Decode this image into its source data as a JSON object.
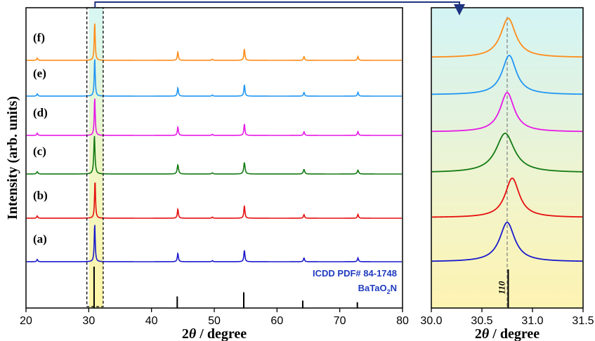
{
  "ylabel": "Intensity (arb. units)",
  "reference": {
    "line1": "ICDD PDF# 84-1748",
    "line2_main": "BaTaO",
    "line2_sub": "2",
    "line2_end": "N",
    "peak_label": "110"
  },
  "colors": {
    "a": "#1a1acc",
    "b": "#e60f0f",
    "c": "#137a13",
    "d": "#e619e6",
    "e": "#2196f3",
    "f": "#ff8c1a",
    "ref": "#000000",
    "blue_text": "#1f3bbf"
  },
  "chart_data": [
    {
      "type": "line",
      "xlabel_prefix": "2",
      "xlabel_theta": "θ",
      "xlabel_suffix": " / degree",
      "xlim": [
        20,
        80
      ],
      "xticks": [
        20,
        30,
        40,
        50,
        60,
        70,
        80
      ],
      "highlight_range": [
        29.7,
        32.3
      ],
      "series": [
        {
          "name": "(a)",
          "color": "#1a1acc",
          "peaks": [
            [
              21.8,
              0.06,
              0.2
            ],
            [
              30.95,
              1.0,
              0.18
            ],
            [
              44.2,
              0.22,
              0.2
            ],
            [
              49.7,
              0.03,
              0.2
            ],
            [
              54.8,
              0.3,
              0.2
            ],
            [
              64.3,
              0.1,
              0.2
            ],
            [
              72.9,
              0.1,
              0.2
            ]
          ]
        },
        {
          "name": "(b)",
          "color": "#e60f0f",
          "peaks": [
            [
              21.8,
              0.06,
              0.2
            ],
            [
              31.0,
              1.0,
              0.18
            ],
            [
              44.2,
              0.24,
              0.2
            ],
            [
              49.7,
              0.03,
              0.2
            ],
            [
              54.8,
              0.33,
              0.2
            ],
            [
              64.3,
              0.1,
              0.2
            ],
            [
              72.9,
              0.1,
              0.2
            ]
          ]
        },
        {
          "name": "(c)",
          "color": "#137a13",
          "peaks": [
            [
              21.8,
              0.06,
              0.25
            ],
            [
              30.9,
              1.0,
              0.22
            ],
            [
              44.2,
              0.24,
              0.25
            ],
            [
              49.7,
              0.03,
              0.25
            ],
            [
              54.8,
              0.3,
              0.25
            ],
            [
              64.3,
              0.12,
              0.25
            ],
            [
              72.9,
              0.1,
              0.25
            ]
          ]
        },
        {
          "name": "(d)",
          "color": "#e619e6",
          "peaks": [
            [
              21.8,
              0.06,
              0.2
            ],
            [
              30.95,
              1.0,
              0.18
            ],
            [
              44.2,
              0.22,
              0.2
            ],
            [
              49.7,
              0.03,
              0.2
            ],
            [
              54.8,
              0.3,
              0.2
            ],
            [
              64.3,
              0.1,
              0.2
            ],
            [
              72.9,
              0.1,
              0.2
            ]
          ]
        },
        {
          "name": "(e)",
          "color": "#2196f3",
          "peaks": [
            [
              21.8,
              0.06,
              0.2
            ],
            [
              30.95,
              1.0,
              0.18
            ],
            [
              44.2,
              0.22,
              0.2
            ],
            [
              49.7,
              0.03,
              0.2
            ],
            [
              54.8,
              0.3,
              0.2
            ],
            [
              64.3,
              0.1,
              0.2
            ],
            [
              72.9,
              0.1,
              0.2
            ]
          ]
        },
        {
          "name": "(f)",
          "color": "#ff8c1a",
          "peaks": [
            [
              21.8,
              0.06,
              0.2
            ],
            [
              30.95,
              1.0,
              0.18
            ],
            [
              44.2,
              0.22,
              0.2
            ],
            [
              49.7,
              0.03,
              0.2
            ],
            [
              54.8,
              0.3,
              0.2
            ],
            [
              64.3,
              0.1,
              0.2
            ],
            [
              72.9,
              0.1,
              0.2
            ]
          ]
        }
      ],
      "reference_peaks": [
        [
          30.85,
          1.0
        ],
        [
          44.1,
          0.28
        ],
        [
          54.7,
          0.38
        ],
        [
          64.1,
          0.18
        ],
        [
          72.8,
          0.14
        ]
      ]
    },
    {
      "type": "line",
      "xlabel_prefix": "2",
      "xlabel_theta": "θ",
      "xlabel_suffix": " / degree",
      "xlim": [
        30.0,
        31.5
      ],
      "xticks": [
        "30.0",
        "30.5",
        "31.0",
        "31.5"
      ],
      "dashed_x": 30.75,
      "series": [
        {
          "name": "(a)",
          "color": "#1a1acc",
          "center": 30.75,
          "width": 0.09
        },
        {
          "name": "(b)",
          "color": "#e60f0f",
          "center": 30.8,
          "width": 0.085
        },
        {
          "name": "(c)",
          "color": "#137a13",
          "center": 30.73,
          "width": 0.11
        },
        {
          "name": "(d)",
          "color": "#e619e6",
          "center": 30.75,
          "width": 0.085
        },
        {
          "name": "(e)",
          "color": "#2196f3",
          "center": 30.77,
          "width": 0.085
        },
        {
          "name": "(f)",
          "color": "#ff8c1a",
          "center": 30.76,
          "width": 0.09
        }
      ],
      "reference_peak": 30.76
    }
  ]
}
